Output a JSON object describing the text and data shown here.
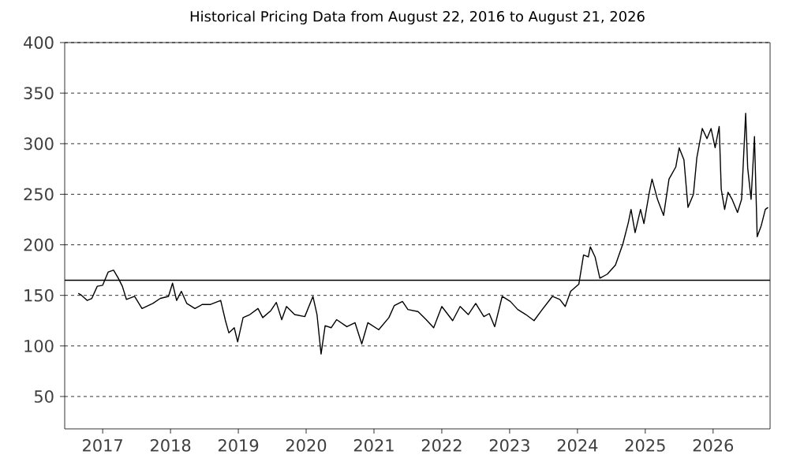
{
  "chart_data": {
    "type": "line",
    "title": "Historical Pricing Data from August 22, 2016 to August 21, 2026",
    "x": [
      2016.64,
      2016.69,
      2016.77,
      2016.84,
      2016.92,
      2017.0,
      2017.08,
      2017.16,
      2017.23,
      2017.29,
      2017.35,
      2017.47,
      2017.58,
      2017.74,
      2017.85,
      2017.97,
      2018.03,
      2018.09,
      2018.16,
      2018.24,
      2018.36,
      2018.47,
      2018.59,
      2018.74,
      2018.81,
      2018.86,
      2018.94,
      2018.99,
      2019.07,
      2019.17,
      2019.29,
      2019.36,
      2019.48,
      2019.56,
      2019.64,
      2019.71,
      2019.83,
      2019.98,
      2020.1,
      2020.16,
      2020.22,
      2020.28,
      2020.37,
      2020.45,
      2020.6,
      2020.72,
      2020.82,
      2020.91,
      2021.07,
      2021.22,
      2021.3,
      2021.42,
      2021.5,
      2021.65,
      2021.77,
      2021.88,
      2022.0,
      2022.08,
      2022.16,
      2022.27,
      2022.39,
      2022.5,
      2022.62,
      2022.7,
      2022.78,
      2022.89,
      2023.01,
      2023.12,
      2023.24,
      2023.36,
      2023.47,
      2023.63,
      2023.74,
      2023.82,
      2023.9,
      2024.02,
      2024.09,
      2024.16,
      2024.19,
      2024.26,
      2024.33,
      2024.44,
      2024.56,
      2024.67,
      2024.75,
      2024.79,
      2024.85,
      2024.93,
      2024.98,
      2025.06,
      2025.1,
      2025.18,
      2025.27,
      2025.35,
      2025.45,
      2025.5,
      2025.57,
      2025.63,
      2025.71,
      2025.76,
      2025.84,
      2025.91,
      2025.97,
      2026.03,
      2026.09,
      2026.12,
      2026.17,
      2026.22,
      2026.28,
      2026.36,
      2026.42,
      2026.48,
      2026.51,
      2026.56,
      2026.61,
      2026.65,
      2026.71,
      2026.77,
      2026.81
    ],
    "values": [
      152,
      150,
      145,
      147,
      159,
      160,
      173,
      175,
      167,
      159,
      146,
      149,
      137,
      142,
      147,
      149,
      162,
      145,
      154,
      142,
      137,
      141,
      141,
      145,
      125,
      113,
      118,
      104,
      128,
      131,
      137,
      128,
      135,
      143,
      126,
      139,
      131,
      129,
      149,
      131,
      92,
      120,
      118,
      126,
      119,
      123,
      102,
      123,
      116,
      128,
      140,
      144,
      136,
      134,
      126,
      118,
      139,
      132,
      125,
      139,
      131,
      142,
      129,
      132,
      119,
      149,
      144,
      136,
      131,
      125,
      135,
      149,
      146,
      139,
      154,
      161,
      190,
      188,
      198,
      188,
      167,
      171,
      180,
      201,
      222,
      235,
      212,
      235,
      221,
      252,
      265,
      245,
      229,
      265,
      277,
      296,
      284,
      237,
      250,
      286,
      315,
      305,
      315,
      296,
      317,
      255,
      235,
      252,
      245,
      232,
      245,
      330,
      276,
      245,
      307,
      208,
      219,
      235,
      237
    ],
    "color": "#000000",
    "line_style": "solid",
    "marker": "none",
    "xlim": [
      2016.44,
      2026.84
    ],
    "xticks": [
      2017,
      2018,
      2019,
      2020,
      2021,
      2022,
      2023,
      2024,
      2025,
      2026
    ],
    "ylim": [
      18,
      400
    ],
    "yticks": [
      50,
      100,
      150,
      200,
      250,
      300,
      350,
      400
    ],
    "grid": "y",
    "ref_lines": [
      {
        "axis": "y",
        "value": 165,
        "color": "#000000",
        "line_style": "solid"
      }
    ]
  }
}
